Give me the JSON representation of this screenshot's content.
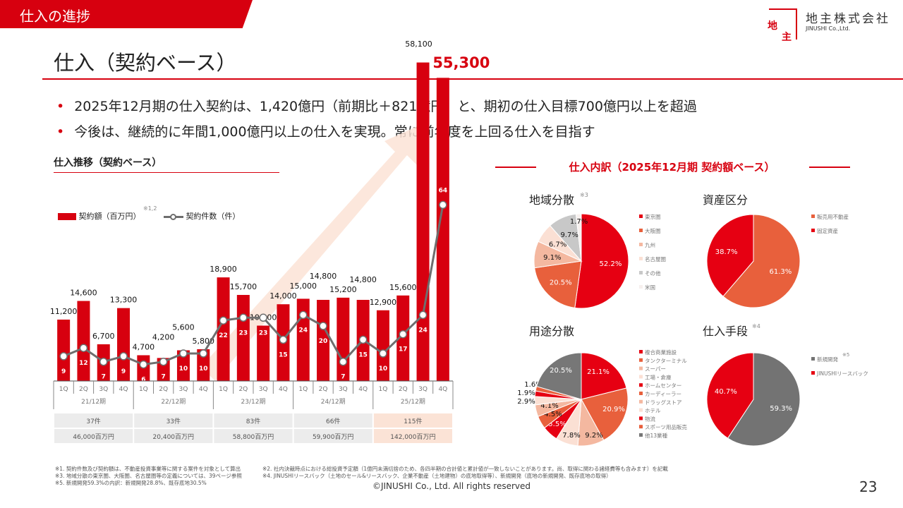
{
  "header": {
    "section": "仕入の進捗",
    "title": "仕入（契約ベース）"
  },
  "logo": {
    "jp": "地主株式会社",
    "en": "JINUSHI Co.,Ltd.",
    "mark_top": "地",
    "mark_bottom": "主"
  },
  "bullets": [
    "2025年12月期の仕入契約は、1,420億円（前期比＋821億円）と、期初の仕入目標700億円以上を超過",
    "今後は、継続的に年間1,000億円以上の仕入を実現。常に前年度を上回る仕入を目指す"
  ],
  "colors": {
    "accent": "#d7000f",
    "arrow": "#fbe3d6",
    "line": "#6e6e6e"
  },
  "chart_data": [
    {
      "type": "bar+line",
      "title": "仕入推移（契約ベース）",
      "legend": {
        "bar": "契約額（百万円）",
        "line": "契約件数（件）",
        "note": "※1,2",
        "placement": "top-left"
      },
      "categories": [
        "1Q",
        "2Q",
        "3Q",
        "4Q",
        "1Q",
        "2Q",
        "3Q",
        "4Q",
        "1Q",
        "2Q",
        "3Q",
        "4Q",
        "1Q",
        "2Q",
        "3Q",
        "4Q",
        "1Q",
        "2Q",
        "3Q",
        "4Q"
      ],
      "periods": [
        "21/12期",
        "22/12期",
        "23/12期",
        "24/12期",
        "25/12期"
      ],
      "series": [
        {
          "name": "契約額（百万円）",
          "type": "bar",
          "values": [
            11200,
            14600,
            6700,
            13300,
            4700,
            4200,
            5600,
            5800,
            18900,
            15700,
            10100,
            14000,
            15000,
            14800,
            15200,
            14800,
            12900,
            15600,
            58100,
            55300
          ],
          "labels": [
            "11,200",
            "14,600",
            "6,700",
            "13,300",
            "4,700",
            "4,200",
            "5,600",
            "5,800",
            "18,900",
            "15,700",
            "10,100",
            "14,000",
            "15,000",
            "14,800",
            "15,200",
            "14,800",
            "12,900",
            "15,600",
            "58,100",
            "55,300"
          ]
        },
        {
          "name": "契約件数（件）",
          "type": "line",
          "values": [
            9,
            12,
            7,
            9,
            6,
            7,
            10,
            10,
            22,
            23,
            23,
            15,
            24,
            20,
            7,
            15,
            10,
            17,
            24,
            64
          ]
        }
      ],
      "annual": {
        "counts": [
          "37件",
          "33件",
          "83件",
          "66件",
          "115件"
        ],
        "amounts": [
          "46,000百万円",
          "20,400百万円",
          "58,800百万円",
          "59,900百万円",
          "142,000百万円"
        ]
      }
    },
    {
      "type": "pie",
      "title": "地域分散",
      "note": "※3",
      "labels": [
        "東京圏",
        "大阪圏",
        "九州",
        "名古屋圏",
        "その他",
        "米国"
      ],
      "values": [
        52.2,
        20.5,
        9.1,
        6.7,
        9.7,
        1.7
      ],
      "colors": [
        "#e60012",
        "#e8603c",
        "#f4b8a0",
        "#fbe0d4",
        "#c8c8c8",
        "#f6f0ee"
      ]
    },
    {
      "type": "pie",
      "title": "資産区分",
      "note": "",
      "labels": [
        "販売用不動産",
        "固定資産"
      ],
      "values": [
        61.3,
        38.7
      ],
      "colors": [
        "#e8603c",
        "#e60012"
      ]
    },
    {
      "type": "pie",
      "title": "用途分散",
      "note": "",
      "labels": [
        "複合商業施設",
        "タンクターミナル",
        "スーパー",
        "工場・倉庫",
        "ホームセンター",
        "カーディーラー",
        "ドラッグストア",
        "ホテル",
        "物流",
        "スポーツ用品販売",
        "他13業種"
      ],
      "values": [
        21.1,
        20.9,
        9.2,
        7.8,
        5.5,
        4.5,
        4.1,
        2.9,
        1.9,
        1.6,
        20.5
      ],
      "colors": [
        "#e60012",
        "#e8603c",
        "#f4b8a0",
        "#fbe0d4",
        "#e60012",
        "#e8603c",
        "#f4b8a0",
        "#fbe0d4",
        "#e60012",
        "#e8603c",
        "#777777"
      ]
    },
    {
      "type": "pie",
      "title": "仕入手段",
      "note": "※4",
      "labels": [
        "新規開発",
        "JINUSHIリースバック"
      ],
      "values": [
        59.3,
        40.7
      ],
      "colors": [
        "#737373",
        "#e60012"
      ],
      "label_notes": [
        "※5",
        ""
      ]
    }
  ],
  "pie_section_title": "仕入内訳（2025年12月期 契約額ベース）",
  "footnotes": {
    "left": [
      "※1. 契約件数及び契約額は、不動産投資事業等に関する案件を対象として算出",
      "※3. 地域分散の東京圏、大阪圏、名古屋圏等の定義については、39ページ参照",
      "※5. 新規開発59.3%の内訳：新規開発28.8%、既存底地30.5%"
    ],
    "right": [
      "※2. 社内決裁時点における総投資予定額（1億円未満切捨のため、各四半期の合計値と累計値が一致しないことがあります。尚、取得に関わる諸経費等も含みます）を記載",
      "※4. JINUSHIリースバック（土地のセール&リースバック、企業不動産（土地建物）の底地取得等）、新規開発（底地の新規開発、既存底地の取得）"
    ]
  },
  "copyright": "©JINUSHI Co., Ltd. All rights reserved",
  "page_number": "23"
}
